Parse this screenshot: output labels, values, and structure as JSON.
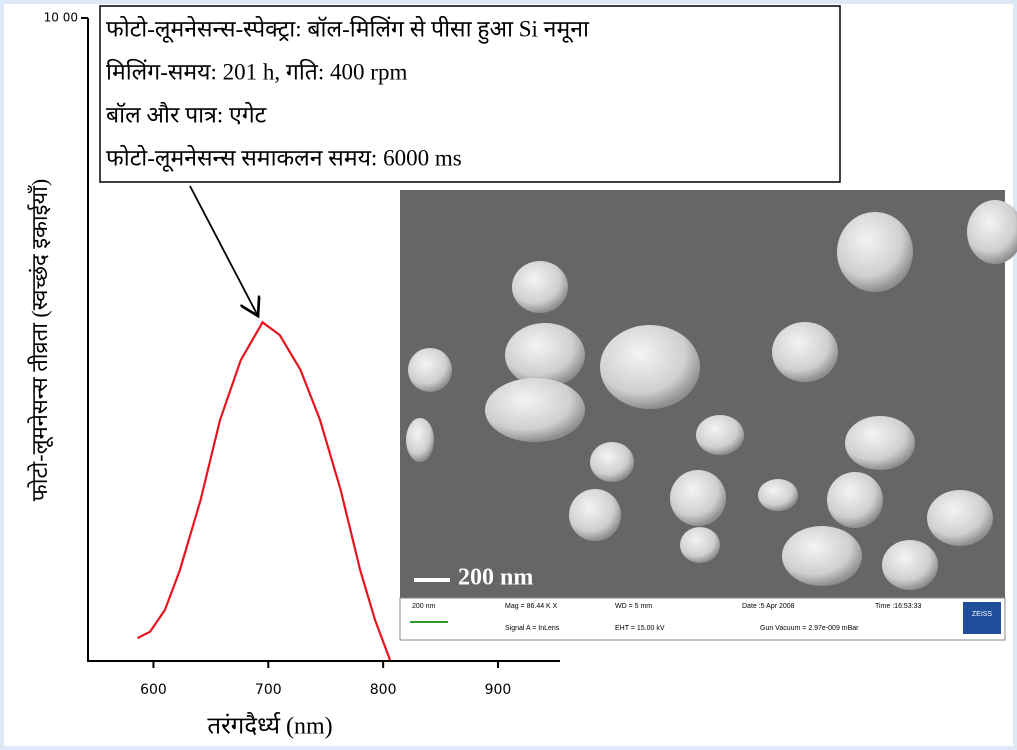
{
  "chart_data": {
    "type": "line",
    "x_label": "तरंगदैर्ध्य (nm)",
    "y_label": "फोटो-लूमनेसन्स तीव्रता (स्वच्छंद इकाईयाँ)",
    "annotation": [
      "फोटो-लूमनेसन्स-स्पेक्ट्रा: बॉल-मिलिंग से पीसा हुआ Si नमूना",
      "मिलिंग-समय: 201 h, गति: 400 rpm",
      "बॉल और पात्र: एगेट",
      "फोटो-लूमनेसन्स समाकलन समय: 6000 ms"
    ],
    "x": [
      586,
      597,
      610,
      623,
      641,
      658,
      676,
      695,
      710,
      728,
      745,
      763,
      780,
      793,
      806
    ],
    "series": [
      {
        "color": "#e8141e",
        "values": [
          34,
          44,
          78,
          140,
          249,
          374,
          467,
          526,
          506,
          452,
          374,
          265,
          140,
          62,
          0
        ]
      }
    ],
    "xlim": [
      543,
      954
    ],
    "ylim": [
      0,
      1000
    ],
    "xticks": [
      600,
      700,
      800,
      900
    ],
    "yticks": [
      {
        "value": 1000,
        "label": "10 00"
      }
    ]
  },
  "inset": {
    "scale_label": "200 nm",
    "info": [
      "200 nm",
      "Mag = 86.44 K X",
      "Signal A = InLens",
      "WD = 5 mm",
      "EHT = 15.00 kV",
      "Date :5 Apr 2008",
      "Gun Vacuum = 2.97e-009 mBar",
      "Time :16:53:33",
      "ZEISS"
    ]
  }
}
